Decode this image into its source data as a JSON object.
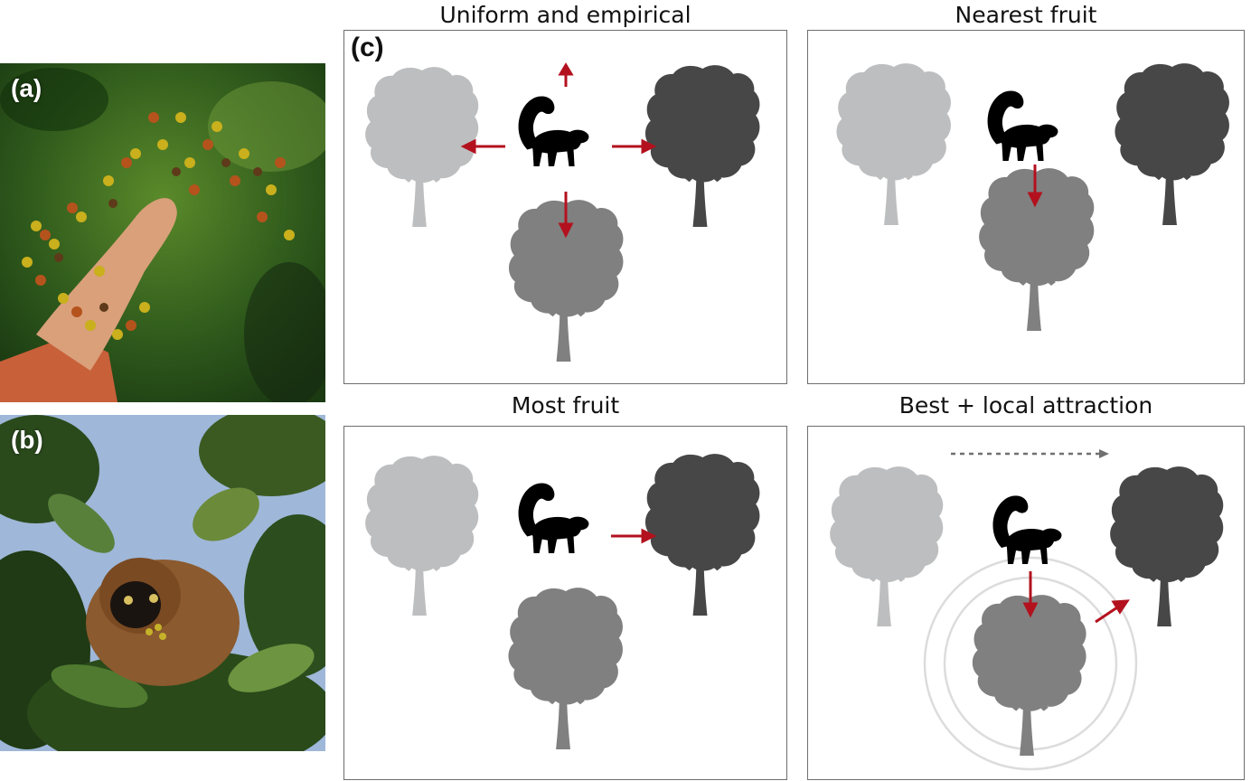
{
  "photos": {
    "a": {
      "label": "(a)"
    },
    "b": {
      "label": "(b)"
    }
  },
  "panel_c": {
    "label": "(c)",
    "panels": [
      {
        "title": "Uniform and empirical"
      },
      {
        "title": "Nearest fruit"
      },
      {
        "title": "Most fruit"
      },
      {
        "title": "Best + local attraction"
      }
    ]
  },
  "colors": {
    "tree_light": "#bdbebf",
    "tree_medium": "#808080",
    "tree_dark": "#474747",
    "arrow": "#b3111e",
    "lemur": "#000000",
    "dotted_arrow": "#707070",
    "attraction_ring": "#dcdcdc"
  },
  "icons": [
    "tree-icon",
    "lemur-icon",
    "arrow-icon"
  ]
}
